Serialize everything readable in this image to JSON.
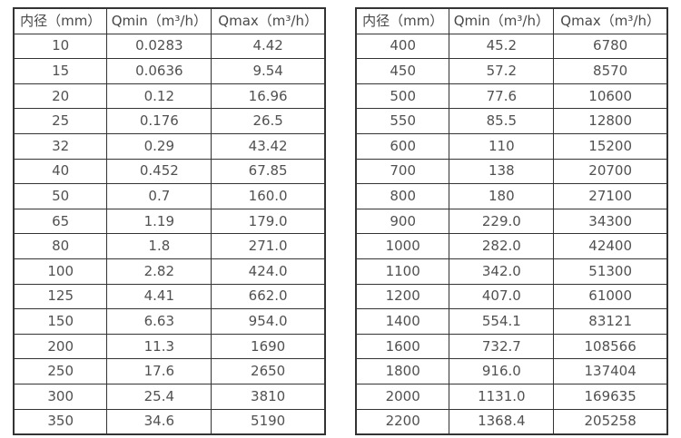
{
  "page": {
    "background_color": "#ffffff",
    "border_color": "#333333",
    "text_color": "#515151"
  },
  "tables": [
    {
      "name": "flow-table-small-diameters",
      "headers": [
        "内径（mm）",
        "Qmin（m³/h）",
        "Qmax（m³/h）"
      ],
      "rows": [
        [
          "10",
          "0.0283",
          "4.42"
        ],
        [
          "15",
          "0.0636",
          "9.54"
        ],
        [
          "20",
          "0.12",
          "16.96"
        ],
        [
          "25",
          "0.176",
          "26.5"
        ],
        [
          "32",
          "0.29",
          "43.42"
        ],
        [
          "40",
          "0.452",
          "67.85"
        ],
        [
          "50",
          "0.7",
          "160.0"
        ],
        [
          "65",
          "1.19",
          "179.0"
        ],
        [
          "80",
          "1.8",
          "271.0"
        ],
        [
          "100",
          "2.82",
          "424.0"
        ],
        [
          "125",
          "4.41",
          "662.0"
        ],
        [
          "150",
          "6.63",
          "954.0"
        ],
        [
          "200",
          "11.3",
          "1690"
        ],
        [
          "250",
          "17.6",
          "2650"
        ],
        [
          "300",
          "25.4",
          "3810"
        ],
        [
          "350",
          "34.6",
          "5190"
        ]
      ]
    },
    {
      "name": "flow-table-large-diameters",
      "headers": [
        "内径（mm）",
        "Qmin（m³/h）",
        "Qmax（m³/h）"
      ],
      "rows": [
        [
          "400",
          "45.2",
          "6780"
        ],
        [
          "450",
          "57.2",
          "8570"
        ],
        [
          "500",
          "77.6",
          "10600"
        ],
        [
          "550",
          "85.5",
          "12800"
        ],
        [
          "600",
          "110",
          "15200"
        ],
        [
          "700",
          "138",
          "20700"
        ],
        [
          "800",
          "180",
          "27100"
        ],
        [
          "900",
          "229.0",
          "34300"
        ],
        [
          "1000",
          "282.0",
          "42400"
        ],
        [
          "1100",
          "342.0",
          "51300"
        ],
        [
          "1200",
          "407.0",
          "61000"
        ],
        [
          "1400",
          "554.1",
          "83121"
        ],
        [
          "1600",
          "732.7",
          "108566"
        ],
        [
          "1800",
          "916.0",
          "137404"
        ],
        [
          "2000",
          "1131.0",
          "169635"
        ],
        [
          "2200",
          "1368.4",
          "205258"
        ]
      ]
    }
  ]
}
